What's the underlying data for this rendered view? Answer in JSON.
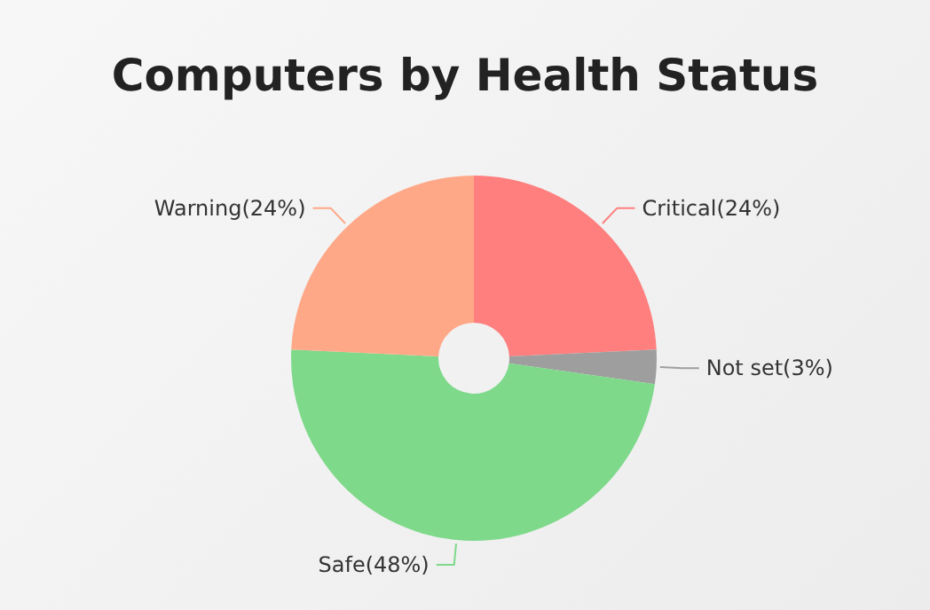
{
  "chart_data": {
    "type": "donut",
    "title": "Computers by Health Status",
    "categories": [
      "Critical",
      "Not set",
      "Safe",
      "Warning"
    ],
    "values": [
      24,
      3,
      48,
      24
    ],
    "value_labels": [
      "(24%)",
      "(3%)",
      "(48%)",
      "(24%)"
    ],
    "colors": [
      "#ff7f7f",
      "#9e9e9e",
      "#7ed98a",
      "#ffa888"
    ]
  }
}
